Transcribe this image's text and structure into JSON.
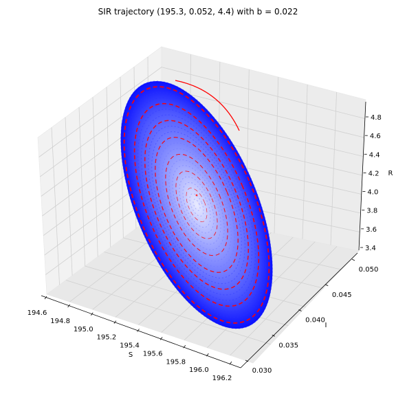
{
  "chart_data": {
    "type": "line",
    "title": "SIR trajectory (195.3, 0.052, 4.4) with b = 0.022",
    "xlabel": "S",
    "ylabel": "I",
    "zlabel": "R",
    "x_ticks": [
      "194.6",
      "194.8",
      "195.0",
      "195.2",
      "195.4",
      "195.6",
      "195.8",
      "196.0",
      "196.2"
    ],
    "y_ticks": [
      "0.030",
      "0.035",
      "0.040",
      "0.045",
      "0.050"
    ],
    "z_ticks": [
      "3.4",
      "3.6",
      "3.8",
      "4.0",
      "4.2",
      "4.4",
      "4.6",
      "4.8"
    ],
    "xlim": [
      194.55,
      196.3
    ],
    "ylim": [
      0.029,
      0.053
    ],
    "zlim": [
      3.35,
      4.95
    ],
    "grid": true,
    "series": [
      {
        "style": "spiral of markers, color fading from blue (outer) to light blue (center)",
        "color_outer": "#0a10ff",
        "color_inner": "#d8dcff",
        "marker_accent": "#ff0000"
      },
      {
        "style": "line",
        "color": "#ff0000"
      }
    ],
    "start_point": {
      "S": 195.3,
      "I": 0.052,
      "R": 4.4
    },
    "parameter_b": 0.022
  }
}
